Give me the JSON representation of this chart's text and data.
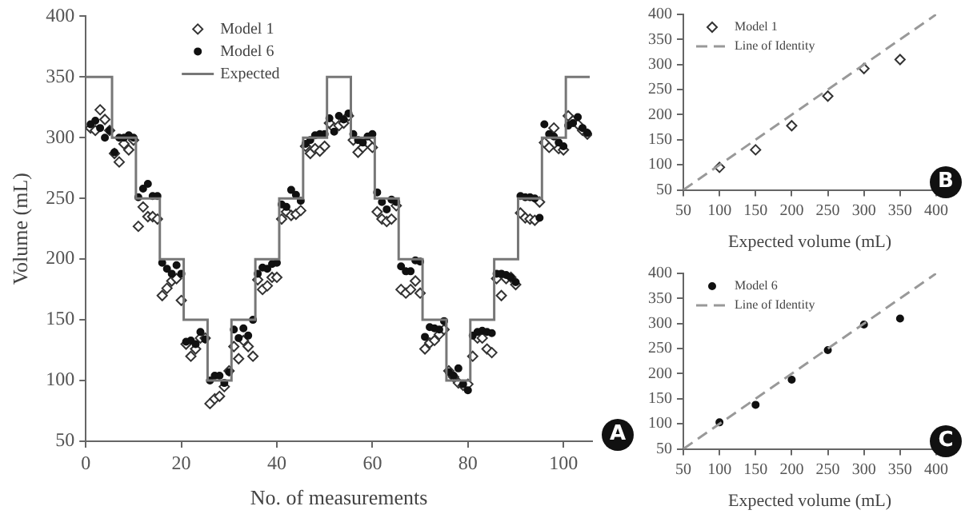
{
  "chart_data": [
    {
      "type": "scatter",
      "xlabel": "No. of measurements",
      "ylabel": "Volume (mL)",
      "annotations": [
        "A"
      ],
      "xlim": [
        0,
        106
      ],
      "xticks": [
        0,
        20,
        40,
        60,
        80,
        100
      ],
      "ylim": [
        50,
        400
      ],
      "yticks": [
        50,
        100,
        150,
        200,
        250,
        300,
        350,
        400
      ],
      "grid": false,
      "legend": "top left",
      "x": [
        1,
        2,
        3,
        4,
        5,
        6,
        7,
        8,
        9,
        10,
        11,
        12,
        13,
        14,
        15,
        16,
        17,
        18,
        19,
        20,
        21,
        22,
        23,
        24,
        25,
        26,
        27,
        28,
        29,
        30,
        31,
        32,
        33,
        34,
        35,
        36,
        37,
        38,
        39,
        40,
        41,
        42,
        43,
        44,
        45,
        46,
        47,
        48,
        49,
        50,
        51,
        52,
        53,
        54,
        55,
        56,
        57,
        58,
        59,
        60,
        61,
        62,
        63,
        64,
        65,
        66,
        67,
        68,
        69,
        70,
        71,
        72,
        73,
        74,
        75,
        76,
        77,
        78,
        79,
        80,
        81,
        82,
        83,
        84,
        85,
        86,
        87,
        88,
        89,
        90,
        91,
        92,
        93,
        94,
        95,
        96,
        97,
        98,
        99,
        100,
        101,
        102,
        103,
        104,
        105
      ],
      "series": [
        {
          "name": "Model 1",
          "marker": "diamond",
          "color": "#333333",
          "values": [
            308,
            306,
            323,
            315,
            306,
            287,
            280,
            295,
            290,
            298,
            227,
            243,
            235,
            235,
            233,
            170,
            176,
            182,
            184,
            166,
            130,
            120,
            126,
            135,
            135,
            81,
            85,
            87,
            95,
            108,
            128,
            118,
            133,
            128,
            120,
            183,
            175,
            178,
            185,
            185,
            233,
            239,
            236,
            237,
            240,
            293,
            287,
            291,
            289,
            293,
            312,
            308,
            310,
            312,
            318,
            298,
            288,
            292,
            296,
            292,
            239,
            233,
            231,
            233,
            244,
            175,
            172,
            175,
            182,
            172,
            126,
            131,
            133,
            138,
            142,
            108,
            103,
            98,
            96,
            97,
            120,
            135,
            135,
            126,
            123,
            184,
            170,
            184,
            185,
            179,
            238,
            234,
            233,
            232,
            247,
            296,
            292,
            308,
            291,
            290,
            318,
            314,
            311,
            306,
            303
          ]
        },
        {
          "name": "Model 6",
          "marker": "circle",
          "color": "#111111",
          "values": [
            311,
            314,
            308,
            300,
            306,
            288,
            300,
            300,
            302,
            300,
            251,
            258,
            262,
            252,
            252,
            197,
            192,
            188,
            195,
            188,
            132,
            133,
            130,
            140,
            134,
            100,
            104,
            104,
            98,
            107,
            142,
            135,
            143,
            137,
            150,
            188,
            193,
            192,
            196,
            197,
            245,
            243,
            257,
            253,
            248,
            295,
            298,
            302,
            303,
            303,
            316,
            305,
            318,
            315,
            320,
            303,
            298,
            296,
            301,
            303,
            255,
            247,
            241,
            249,
            247,
            194,
            190,
            190,
            199,
            198,
            136,
            144,
            143,
            142,
            149,
            107,
            104,
            110,
            97,
            92,
            137,
            140,
            141,
            140,
            139,
            188,
            188,
            187,
            185,
            181,
            252,
            251,
            251,
            250,
            234,
            311,
            303,
            301,
            296,
            293,
            310,
            312,
            317,
            308,
            304
          ]
        },
        {
          "name": "Expected",
          "type": "step",
          "marker": "none",
          "color": "#777777",
          "x": [
            0,
            5.5,
            10.5,
            15.5,
            20.5,
            25.5,
            30.5,
            35.5,
            40.5,
            45.5,
            50.5,
            55.5,
            60.5,
            65.5,
            70.5,
            75.5,
            80.5,
            85.5,
            90.5,
            95.5,
            100.5,
            105.5
          ],
          "values": [
            350,
            300,
            250,
            200,
            150,
            100,
            150,
            200,
            250,
            300,
            350,
            300,
            250,
            200,
            150,
            100,
            150,
            200,
            250,
            300,
            350,
            350
          ]
        }
      ]
    },
    {
      "type": "scatter",
      "xlabel": "Expected volume (mL)",
      "annotations": [
        "B"
      ],
      "xlim": [
        50,
        400
      ],
      "xticks": [
        50,
        100,
        150,
        200,
        250,
        300,
        350,
        400
      ],
      "ylim": [
        50,
        400
      ],
      "yticks": [
        50,
        100,
        150,
        200,
        250,
        300,
        350,
        400
      ],
      "grid": false,
      "legend": "top left",
      "x": [
        100,
        150,
        200,
        250,
        300,
        350
      ],
      "series": [
        {
          "name": "Model 1",
          "marker": "diamond",
          "color": "#333333",
          "values": [
            95,
            130,
            178,
            237,
            292,
            310
          ]
        },
        {
          "name": "Line of Identity",
          "type": "line",
          "marker": "none",
          "line_style": "dashed",
          "color": "#999999",
          "x": [
            50,
            400
          ],
          "values": [
            50,
            400
          ]
        }
      ]
    },
    {
      "type": "scatter",
      "xlabel": "Expected volume (mL)",
      "annotations": [
        "C"
      ],
      "xlim": [
        50,
        400
      ],
      "xticks": [
        50,
        100,
        150,
        200,
        250,
        300,
        350,
        400
      ],
      "ylim": [
        50,
        400
      ],
      "yticks": [
        50,
        100,
        150,
        200,
        250,
        300,
        350,
        400
      ],
      "grid": false,
      "legend": "top left",
      "x": [
        100,
        150,
        200,
        250,
        300,
        350
      ],
      "series": [
        {
          "name": "Model 6",
          "marker": "circle",
          "color": "#111111",
          "values": [
            103,
            138,
            188,
            247,
            298,
            310
          ]
        },
        {
          "name": "Line of Identity",
          "type": "line",
          "marker": "none",
          "line_style": "dashed",
          "color": "#999999",
          "x": [
            50,
            400
          ],
          "values": [
            50,
            400
          ]
        }
      ]
    }
  ]
}
